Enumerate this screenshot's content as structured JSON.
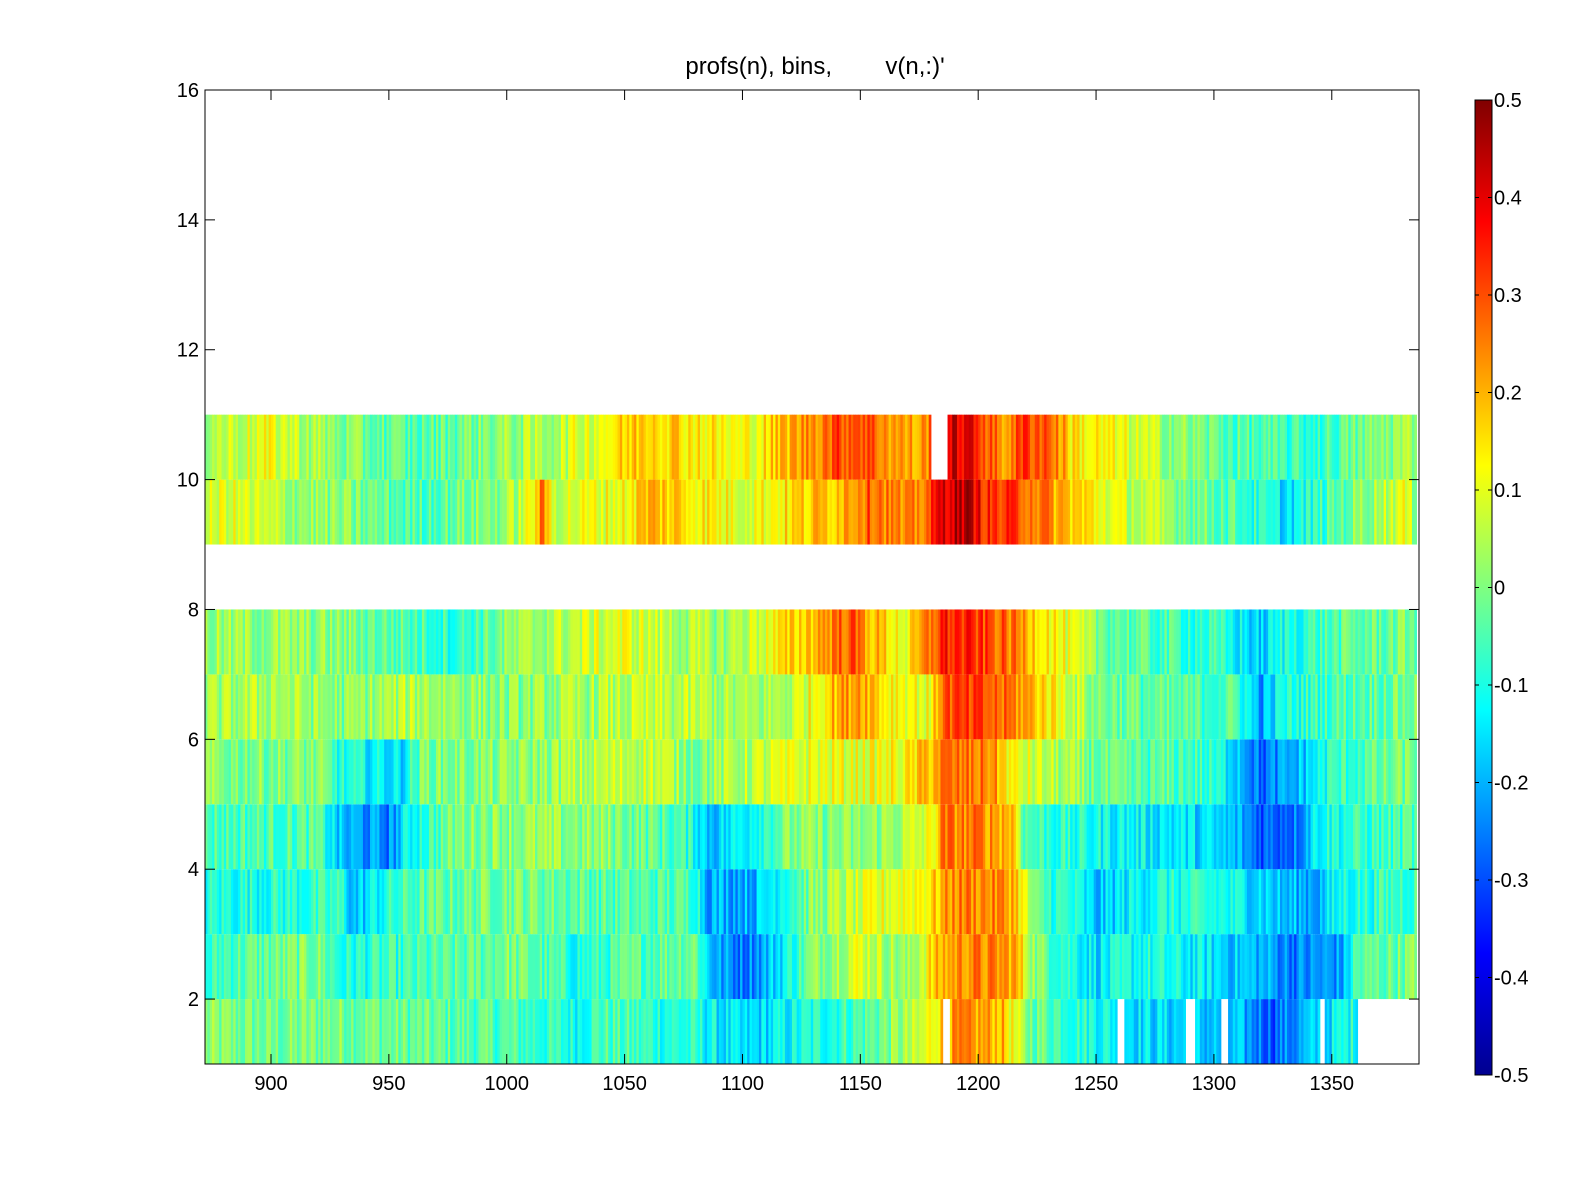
{
  "chart_data": {
    "type": "heatmap",
    "title": "profs(n), bins,        v(n,:)'",
    "xlabel": "",
    "ylabel": "",
    "xlim": [
      872,
      1387
    ],
    "ylim": [
      1,
      16
    ],
    "x_ticks": [
      900,
      950,
      1000,
      1050,
      1100,
      1150,
      1200,
      1250,
      1300,
      1350
    ],
    "y_ticks": [
      2,
      4,
      6,
      8,
      10,
      12,
      14,
      16
    ],
    "colormap": "jet",
    "clim": [
      -0.5,
      0.5
    ],
    "colorbar": {
      "ticks": [
        0.5,
        0.4,
        0.3,
        0.2,
        0.1,
        0,
        -0.1,
        -0.2,
        -0.3,
        -0.4,
        -0.5
      ],
      "labels": [
        "0.5",
        "0.4",
        "0.3",
        "0.2",
        "0.1",
        "0",
        "-0.1",
        "-0.2",
        "-0.3",
        "-0.4",
        "-0.5"
      ]
    },
    "profile_x_range": [
      872,
      1386
    ],
    "bins": [
      {
        "row": 1,
        "y": [
          1,
          2
        ],
        "keyframes": [
          [
            872,
            0.0
          ],
          [
            900,
            -0.02
          ],
          [
            930,
            0.0
          ],
          [
            960,
            -0.03
          ],
          [
            1000,
            -0.05
          ],
          [
            1030,
            -0.1
          ],
          [
            1040,
            -0.05
          ],
          [
            1080,
            -0.1
          ],
          [
            1100,
            -0.18
          ],
          [
            1130,
            -0.1
          ],
          [
            1150,
            -0.05
          ],
          [
            1175,
            0.05
          ],
          [
            1182,
            0.15
          ],
          [
            1190,
            0.22
          ],
          [
            1210,
            0.2
          ],
          [
            1220,
            0.0
          ],
          [
            1250,
            -0.1
          ],
          [
            1270,
            -0.15
          ],
          [
            1310,
            -0.2
          ],
          [
            1325,
            -0.28
          ],
          [
            1340,
            -0.2
          ],
          [
            1358,
            -0.1
          ],
          [
            1387,
            -0.02
          ]
        ],
        "gaps": [
          [
            1185,
            1188
          ],
          [
            1259,
            1262
          ],
          [
            1288,
            1292
          ],
          [
            1303,
            1306
          ],
          [
            1345,
            1347
          ],
          [
            1361,
            1387
          ]
        ]
      },
      {
        "row": 2,
        "y": [
          2,
          3
        ],
        "keyframes": [
          [
            872,
            -0.1
          ],
          [
            880,
            -0.05
          ],
          [
            920,
            0.0
          ],
          [
            930,
            -0.1
          ],
          [
            980,
            -0.05
          ],
          [
            1000,
            0.0
          ],
          [
            1030,
            -0.1
          ],
          [
            1050,
            -0.05
          ],
          [
            1080,
            0.0
          ],
          [
            1085,
            -0.15
          ],
          [
            1090,
            -0.22
          ],
          [
            1100,
            -0.25
          ],
          [
            1110,
            -0.2
          ],
          [
            1130,
            0.0
          ],
          [
            1150,
            0.1
          ],
          [
            1170,
            0.0
          ],
          [
            1180,
            0.15
          ],
          [
            1185,
            0.2
          ],
          [
            1195,
            0.25
          ],
          [
            1215,
            0.22
          ],
          [
            1225,
            0.0
          ],
          [
            1250,
            -0.15
          ],
          [
            1270,
            -0.1
          ],
          [
            1300,
            -0.15
          ],
          [
            1320,
            -0.2
          ],
          [
            1335,
            -0.25
          ],
          [
            1355,
            -0.22
          ],
          [
            1360,
            -0.05
          ],
          [
            1387,
            0.0
          ]
        ],
        "gaps": []
      },
      {
        "row": 3,
        "y": [
          3,
          4
        ],
        "keyframes": [
          [
            872,
            -0.1
          ],
          [
            930,
            -0.08
          ],
          [
            935,
            -0.2
          ],
          [
            945,
            -0.12
          ],
          [
            960,
            -0.05
          ],
          [
            1000,
            0.0
          ],
          [
            1050,
            -0.05
          ],
          [
            1080,
            -0.05
          ],
          [
            1085,
            -0.2
          ],
          [
            1105,
            -0.2
          ],
          [
            1115,
            -0.1
          ],
          [
            1130,
            0.0
          ],
          [
            1160,
            0.1
          ],
          [
            1180,
            0.15
          ],
          [
            1190,
            0.25
          ],
          [
            1200,
            0.25
          ],
          [
            1215,
            0.22
          ],
          [
            1225,
            -0.05
          ],
          [
            1240,
            -0.1
          ],
          [
            1250,
            -0.2
          ],
          [
            1260,
            -0.15
          ],
          [
            1275,
            -0.1
          ],
          [
            1300,
            -0.1
          ],
          [
            1320,
            -0.15
          ],
          [
            1330,
            -0.2
          ],
          [
            1345,
            -0.2
          ],
          [
            1355,
            -0.1
          ],
          [
            1387,
            -0.05
          ]
        ],
        "gaps": []
      },
      {
        "row": 4,
        "y": [
          4,
          5
        ],
        "keyframes": [
          [
            872,
            -0.05
          ],
          [
            920,
            -0.05
          ],
          [
            930,
            -0.2
          ],
          [
            950,
            -0.25
          ],
          [
            960,
            -0.1
          ],
          [
            980,
            0.0
          ],
          [
            1000,
            0.02
          ],
          [
            1050,
            0.0
          ],
          [
            1070,
            -0.05
          ],
          [
            1080,
            -0.1
          ],
          [
            1085,
            -0.18
          ],
          [
            1095,
            -0.15
          ],
          [
            1120,
            0.0
          ],
          [
            1150,
            0.0
          ],
          [
            1170,
            0.05
          ],
          [
            1180,
            0.1
          ],
          [
            1185,
            0.25
          ],
          [
            1200,
            0.25
          ],
          [
            1215,
            0.2
          ],
          [
            1220,
            -0.05
          ],
          [
            1240,
            -0.1
          ],
          [
            1260,
            -0.12
          ],
          [
            1290,
            -0.15
          ],
          [
            1310,
            -0.2
          ],
          [
            1320,
            -0.28
          ],
          [
            1335,
            -0.25
          ],
          [
            1345,
            -0.1
          ],
          [
            1387,
            -0.05
          ]
        ],
        "gaps": []
      },
      {
        "row": 5,
        "y": [
          5,
          6
        ],
        "keyframes": [
          [
            872,
            0.0
          ],
          [
            920,
            0.0
          ],
          [
            930,
            -0.1
          ],
          [
            955,
            -0.15
          ],
          [
            965,
            0.0
          ],
          [
            1000,
            0.0
          ],
          [
            1040,
            0.05
          ],
          [
            1060,
            0.08
          ],
          [
            1080,
            0.0
          ],
          [
            1100,
            0.05
          ],
          [
            1130,
            0.1
          ],
          [
            1150,
            0.1
          ],
          [
            1170,
            0.12
          ],
          [
            1185,
            0.25
          ],
          [
            1205,
            0.25
          ],
          [
            1215,
            0.1
          ],
          [
            1230,
            0.05
          ],
          [
            1260,
            -0.05
          ],
          [
            1290,
            -0.05
          ],
          [
            1310,
            -0.15
          ],
          [
            1320,
            -0.28
          ],
          [
            1335,
            -0.2
          ],
          [
            1350,
            -0.08
          ],
          [
            1387,
            0.0
          ]
        ],
        "gaps": []
      },
      {
        "row": 6,
        "y": [
          6,
          7
        ],
        "keyframes": [
          [
            872,
            0.02
          ],
          [
            900,
            0.05
          ],
          [
            930,
            0.0
          ],
          [
            960,
            0.05
          ],
          [
            1000,
            0.0
          ],
          [
            1050,
            0.05
          ],
          [
            1080,
            0.05
          ],
          [
            1100,
            0.02
          ],
          [
            1120,
            0.05
          ],
          [
            1140,
            0.2
          ],
          [
            1150,
            0.25
          ],
          [
            1160,
            0.15
          ],
          [
            1180,
            0.1
          ],
          [
            1185,
            0.3
          ],
          [
            1200,
            0.3
          ],
          [
            1215,
            0.25
          ],
          [
            1230,
            0.15
          ],
          [
            1250,
            0.0
          ],
          [
            1280,
            -0.05
          ],
          [
            1310,
            -0.05
          ],
          [
            1320,
            -0.22
          ],
          [
            1330,
            -0.1
          ],
          [
            1350,
            -0.05
          ],
          [
            1387,
            0.0
          ]
        ],
        "gaps": []
      },
      {
        "row": 7,
        "y": [
          7,
          8
        ],
        "keyframes": [
          [
            872,
            0.02
          ],
          [
            900,
            0.02
          ],
          [
            930,
            0.0
          ],
          [
            960,
            -0.05
          ],
          [
            980,
            -0.08
          ],
          [
            1000,
            0.0
          ],
          [
            1020,
            0.05
          ],
          [
            1050,
            0.1
          ],
          [
            1070,
            0.05
          ],
          [
            1090,
            0.02
          ],
          [
            1110,
            0.1
          ],
          [
            1130,
            0.2
          ],
          [
            1145,
            0.3
          ],
          [
            1155,
            0.2
          ],
          [
            1170,
            0.1
          ],
          [
            1185,
            0.35
          ],
          [
            1200,
            0.32
          ],
          [
            1215,
            0.25
          ],
          [
            1230,
            0.15
          ],
          [
            1250,
            0.0
          ],
          [
            1270,
            -0.05
          ],
          [
            1300,
            -0.08
          ],
          [
            1320,
            -0.18
          ],
          [
            1330,
            -0.1
          ],
          [
            1350,
            -0.05
          ],
          [
            1387,
            0.0
          ]
        ],
        "gaps": []
      },
      {
        "row": 8,
        "y": [
          8,
          9
        ],
        "keyframes": [],
        "gaps": [
          [
            872,
            1387
          ]
        ]
      },
      {
        "row": 9,
        "y": [
          9,
          10
        ],
        "keyframes": [
          [
            872,
            0.05
          ],
          [
            880,
            0.1
          ],
          [
            900,
            0.05
          ],
          [
            930,
            0.0
          ],
          [
            960,
            -0.05
          ],
          [
            1000,
            0.02
          ],
          [
            1010,
            0.1
          ],
          [
            1015,
            0.25
          ],
          [
            1020,
            0.08
          ],
          [
            1050,
            0.12
          ],
          [
            1060,
            0.2
          ],
          [
            1080,
            0.15
          ],
          [
            1100,
            0.1
          ],
          [
            1120,
            0.15
          ],
          [
            1140,
            0.2
          ],
          [
            1155,
            0.3
          ],
          [
            1170,
            0.2
          ],
          [
            1180,
            0.3
          ],
          [
            1185,
            0.42
          ],
          [
            1195,
            0.45
          ],
          [
            1205,
            0.32
          ],
          [
            1220,
            0.3
          ],
          [
            1235,
            0.2
          ],
          [
            1260,
            0.08
          ],
          [
            1290,
            0.0
          ],
          [
            1310,
            -0.05
          ],
          [
            1330,
            -0.15
          ],
          [
            1350,
            -0.05
          ],
          [
            1380,
            0.1
          ],
          [
            1387,
            0.0
          ]
        ],
        "gaps": []
      },
      {
        "row": 10,
        "y": [
          10,
          11
        ],
        "keyframes": [
          [
            872,
            0.05
          ],
          [
            900,
            0.1
          ],
          [
            930,
            0.0
          ],
          [
            960,
            -0.05
          ],
          [
            1000,
            0.02
          ],
          [
            1020,
            0.05
          ],
          [
            1040,
            0.12
          ],
          [
            1060,
            0.2
          ],
          [
            1080,
            0.15
          ],
          [
            1100,
            0.1
          ],
          [
            1120,
            0.2
          ],
          [
            1140,
            0.3
          ],
          [
            1150,
            0.32
          ],
          [
            1165,
            0.22
          ],
          [
            1175,
            0.2
          ],
          [
            1190,
            0.42
          ],
          [
            1200,
            0.35
          ],
          [
            1210,
            0.22
          ],
          [
            1220,
            0.32
          ],
          [
            1230,
            0.3
          ],
          [
            1240,
            0.15
          ],
          [
            1260,
            0.1
          ],
          [
            1290,
            0.0
          ],
          [
            1310,
            -0.05
          ],
          [
            1340,
            -0.08
          ],
          [
            1370,
            0.0
          ],
          [
            1387,
            0.05
          ]
        ],
        "gaps": [
          [
            1180,
            1187
          ]
        ]
      }
    ]
  }
}
